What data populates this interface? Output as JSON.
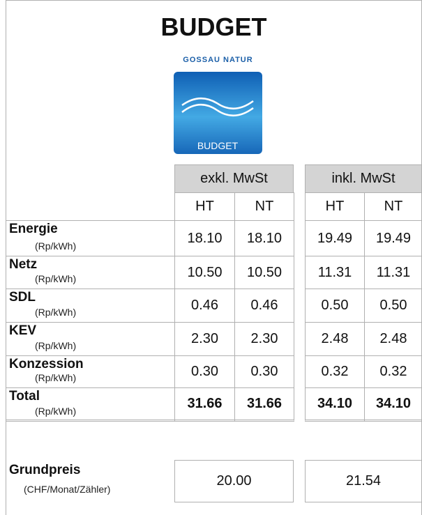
{
  "header": {
    "title": "BUDGET",
    "logo": {
      "brand": "GOSSAU NATUR",
      "label": "BUDGET"
    }
  },
  "table": {
    "groups": [
      "exkl. MwSt",
      "inkl. MwSt"
    ],
    "subheaders": [
      "HT",
      "NT",
      "HT",
      "NT"
    ],
    "rows": [
      {
        "label": "Energie",
        "unit": "(Rp/kWh)",
        "values": [
          "18.10",
          "18.10",
          "19.49",
          "19.49"
        ]
      },
      {
        "label": "Netz",
        "unit": "(Rp/kWh)",
        "values": [
          "10.50",
          "10.50",
          "11.31",
          "11.31"
        ]
      },
      {
        "label": "SDL",
        "unit": "(Rp/kWh)",
        "values": [
          "0.46",
          "0.46",
          "0.50",
          "0.50"
        ]
      },
      {
        "label": "KEV",
        "unit": "(Rp/kWh)",
        "values": [
          "2.30",
          "2.30",
          "2.48",
          "2.48"
        ]
      },
      {
        "label": "Konzession",
        "unit": "(Rp/kWh)",
        "values": [
          "0.30",
          "0.30",
          "0.32",
          "0.32"
        ]
      },
      {
        "label": "Total",
        "unit": "(Rp/kWh)",
        "values": [
          "31.66",
          "31.66",
          "34.10",
          "34.10"
        ]
      }
    ],
    "base": {
      "label": "Grundpreis",
      "unit": "(CHF/Monat/Zähler)",
      "values": [
        "20.00",
        "21.54"
      ]
    }
  }
}
